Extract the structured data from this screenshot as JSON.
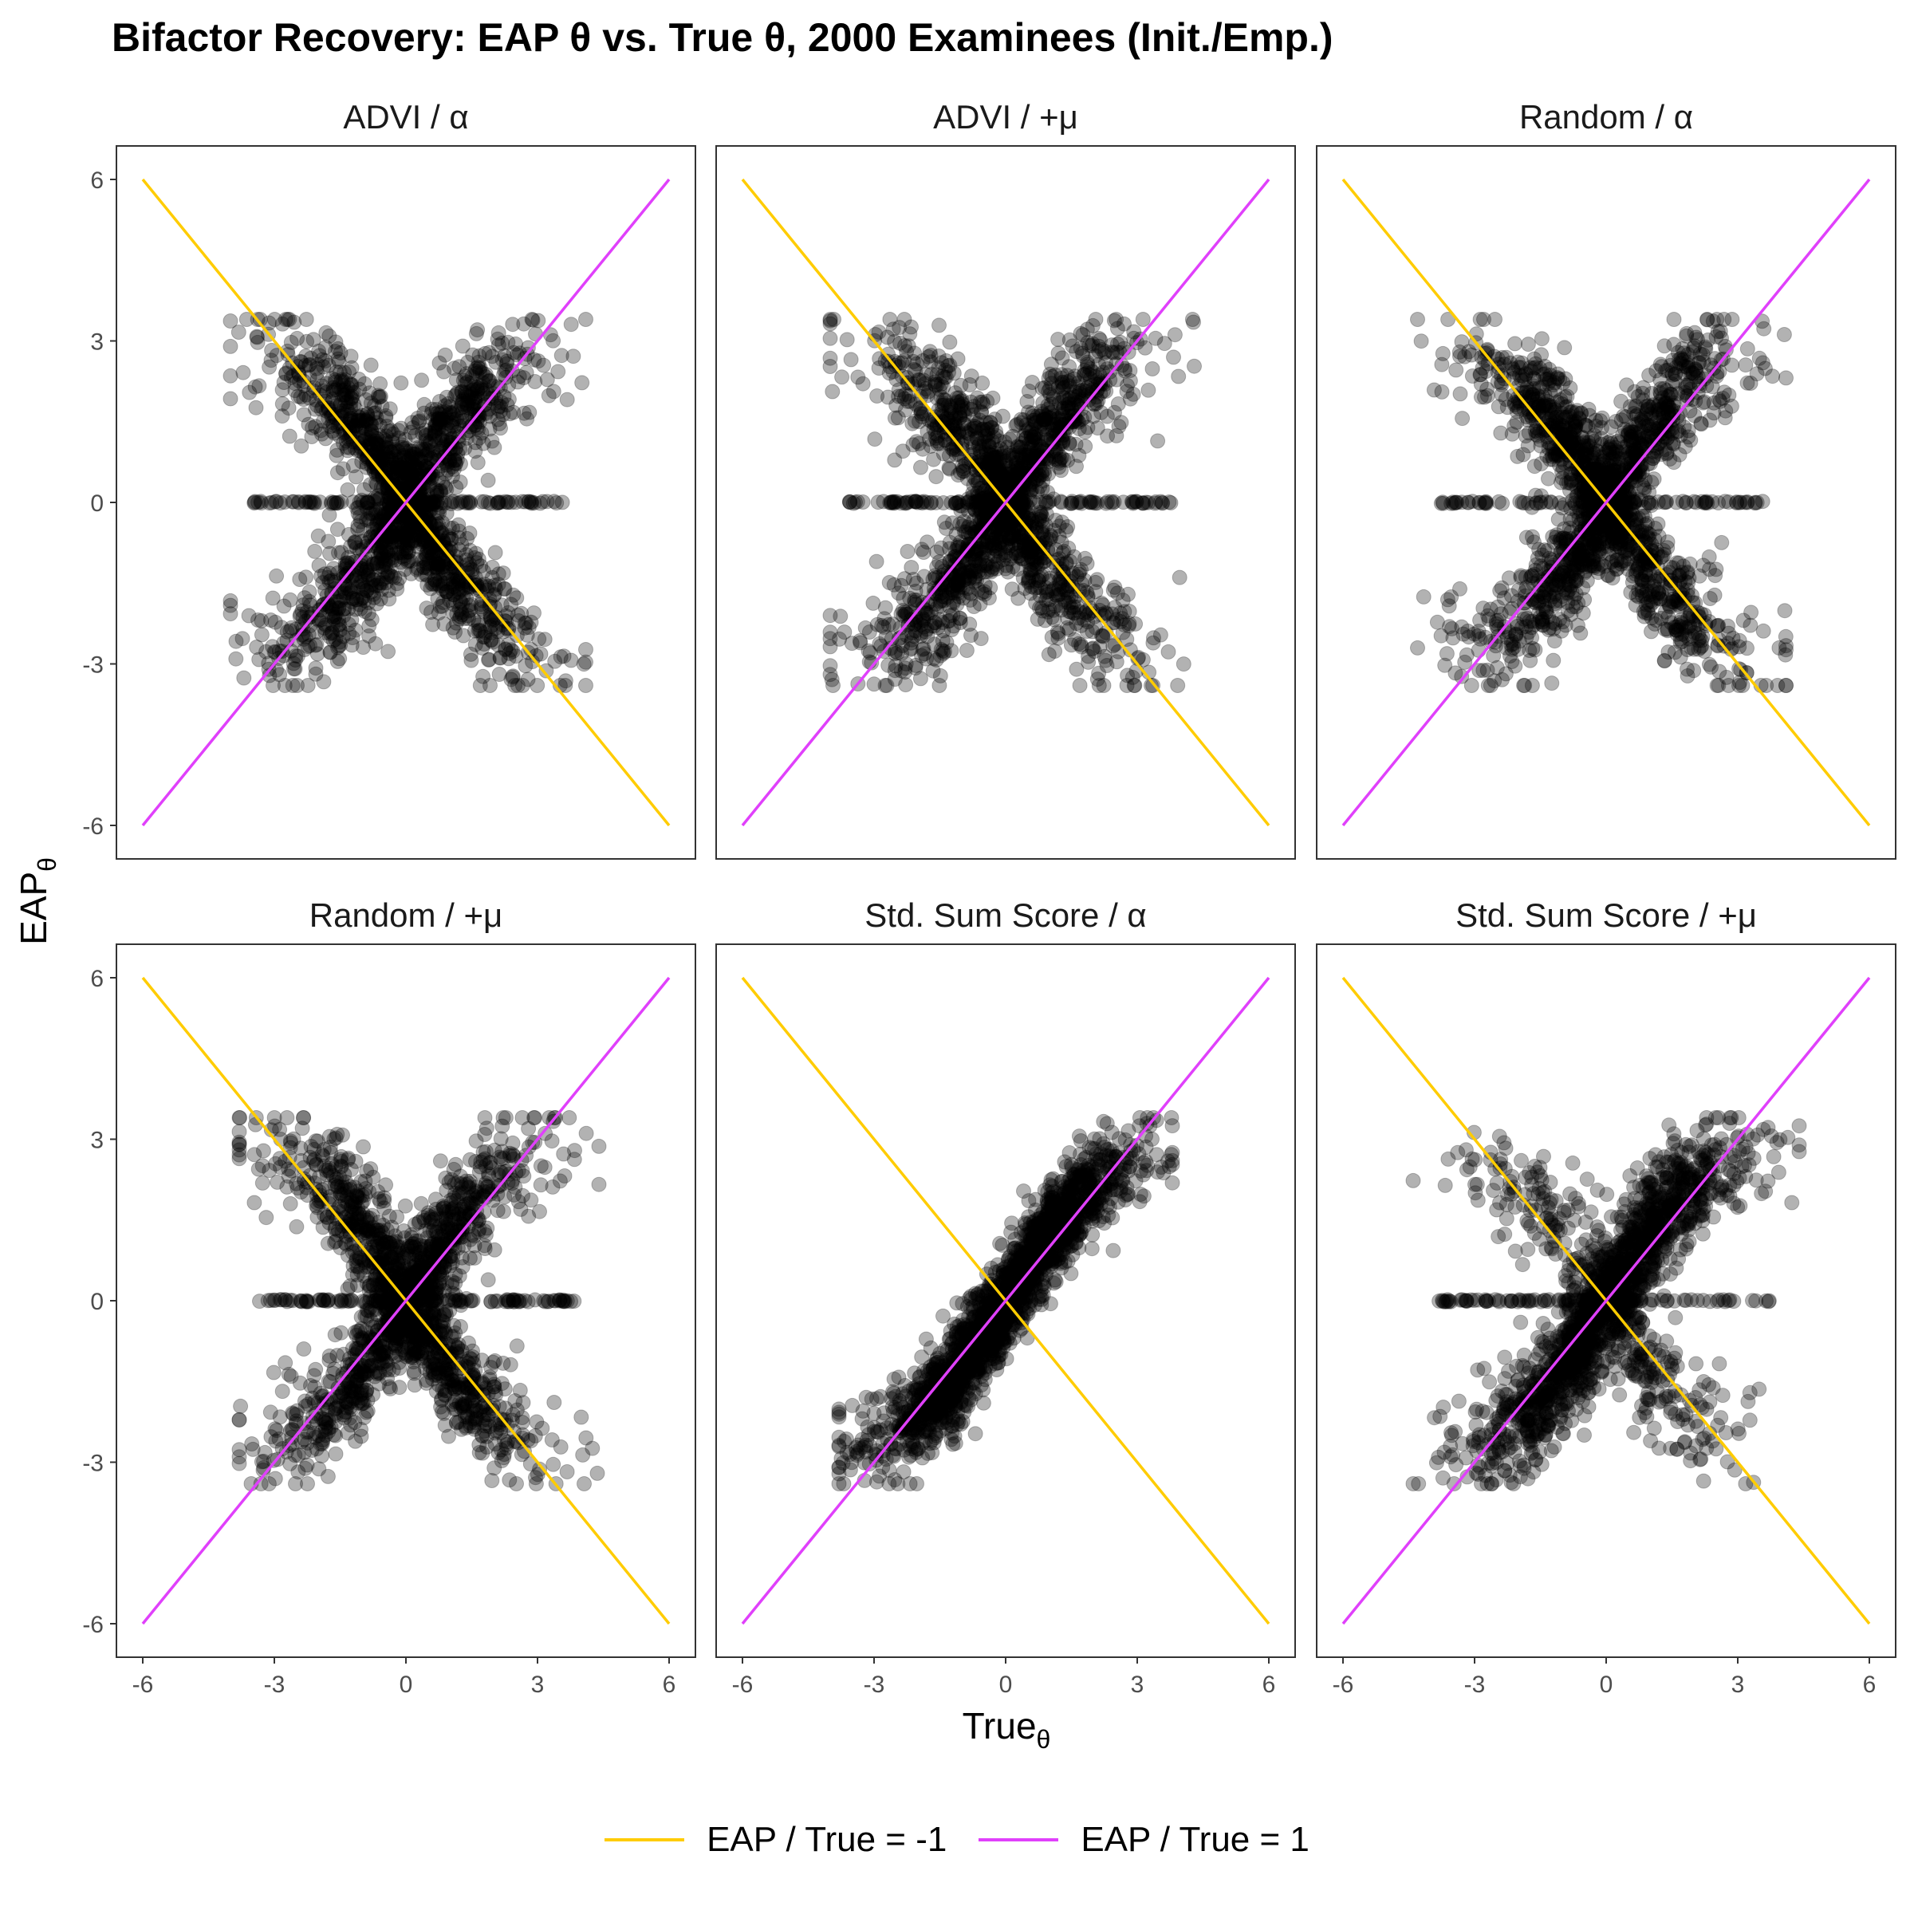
{
  "chart_data": {
    "type": "scatter",
    "title": "Bifactor Recovery: EAP θ vs. True θ, 2000 Examinees (Init./Emp.)",
    "xlabel": "True",
    "xlabel_sub": "θ",
    "ylabel": "EAP",
    "ylabel_sub": "θ",
    "xlim": [
      -6,
      6
    ],
    "ylim": [
      -6,
      6
    ],
    "x_ticks": [
      -6,
      -3,
      0,
      3,
      6
    ],
    "y_ticks": [
      -6,
      -3,
      0,
      3,
      6
    ],
    "tick_labels": [
      "-6",
      "-3",
      "0",
      "3",
      "6"
    ],
    "grid": false,
    "legend_position": "bottom",
    "series": [
      {
        "name": "EAP / True = -1",
        "color": "#FFCC00",
        "slope": -1,
        "x": [
          -6,
          6
        ],
        "y": [
          6,
          -6
        ]
      },
      {
        "name": "EAP / True = 1",
        "color": "#E040FB",
        "slope": 1,
        "x": [
          -6,
          6
        ],
        "y": [
          -6,
          6
        ]
      }
    ],
    "point_color": "#000000",
    "point_alpha": 0.3,
    "point_count_per_panel": 2000,
    "panels": [
      {
        "label": "ADVI / α",
        "pattern": "x",
        "neg_weight": 0.5,
        "zero_band": 0.06,
        "x_range": [
          -4.2,
          4.3
        ]
      },
      {
        "label": "ADVI / +μ",
        "pattern": "x",
        "neg_weight": 0.45,
        "zero_band": 0.07,
        "x_range": [
          -4.2,
          4.5
        ]
      },
      {
        "label": "Random / α",
        "pattern": "x",
        "neg_weight": 0.5,
        "zero_band": 0.05,
        "x_range": [
          -4.5,
          4.3
        ]
      },
      {
        "label": "Random / +μ",
        "pattern": "x",
        "neg_weight": 0.5,
        "zero_band": 0.06,
        "x_range": [
          -4.0,
          4.6
        ]
      },
      {
        "label": "Std. Sum Score / α",
        "pattern": "diag",
        "neg_weight": 0.0,
        "zero_band": 0.0,
        "x_range": [
          -4.5,
          4.5
        ]
      },
      {
        "label": "Std. Sum Score / +μ",
        "pattern": "diag_x",
        "neg_weight": 0.22,
        "zero_band": 0.05,
        "x_range": [
          -4.6,
          4.6
        ]
      }
    ]
  }
}
